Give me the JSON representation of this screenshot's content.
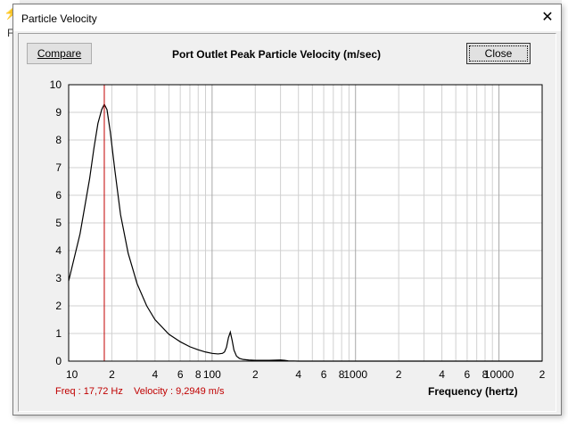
{
  "background": {
    "menu_fragment": "Fil"
  },
  "window": {
    "title": "Particle Velocity",
    "close_glyph": "✕"
  },
  "toolbar": {
    "compare_label": "Compare",
    "close_label": "Close"
  },
  "chart_title": "Port Outlet Peak Particle Velocity (m/sec)",
  "readout": {
    "freq": "Freq : 17,72 Hz",
    "velocity": "Velocity : 9,2949 m/s"
  },
  "colors": {
    "curve": "#000000",
    "cursor": "#c00000",
    "grid": "#d0d0d0"
  },
  "chart_data": {
    "type": "line",
    "title": "Port Outlet Peak Particle Velocity (m/sec)",
    "xlabel": "Frequency (hertz)",
    "ylabel": "",
    "x_scale": "log",
    "xlim": [
      10,
      20000
    ],
    "ylim": [
      0,
      10
    ],
    "y_ticks": [
      "0",
      "1",
      "2",
      "3",
      "4",
      "5",
      "6",
      "7",
      "8",
      "9",
      "10"
    ],
    "x_ticks": [
      {
        "value": 10,
        "label": "10"
      },
      {
        "value": 20,
        "label": "2"
      },
      {
        "value": 40,
        "label": "4"
      },
      {
        "value": 60,
        "label": "6"
      },
      {
        "value": 80,
        "label": "8"
      },
      {
        "value": 100,
        "label": "100"
      },
      {
        "value": 200,
        "label": "2"
      },
      {
        "value": 400,
        "label": "4"
      },
      {
        "value": 600,
        "label": "6"
      },
      {
        "value": 800,
        "label": "8"
      },
      {
        "value": 1000,
        "label": "1000"
      },
      {
        "value": 2000,
        "label": "2"
      },
      {
        "value": 4000,
        "label": "4"
      },
      {
        "value": 6000,
        "label": "6"
      },
      {
        "value": 8000,
        "label": "8"
      },
      {
        "value": 10000,
        "label": "10000"
      },
      {
        "value": 20000,
        "label": "2"
      }
    ],
    "grid": true,
    "cursor_x": 17.72,
    "series": [
      {
        "x": [
          10,
          12,
          14,
          15,
          16,
          17,
          17.72,
          18.5,
          19.5,
          21,
          23,
          26,
          30,
          35,
          40,
          50,
          60,
          70,
          80,
          90,
          100,
          110,
          118,
          122,
          126,
          130,
          134,
          138,
          142,
          148,
          155,
          165,
          180,
          200,
          250,
          300,
          320,
          340,
          400,
          600,
          1000,
          2000,
          20000
        ],
        "y": [
          2.9,
          4.6,
          6.6,
          7.7,
          8.6,
          9.1,
          9.29,
          9.1,
          8.3,
          6.9,
          5.3,
          3.9,
          2.8,
          2.0,
          1.5,
          0.97,
          0.7,
          0.52,
          0.41,
          0.33,
          0.28,
          0.26,
          0.28,
          0.33,
          0.5,
          0.85,
          1.05,
          0.75,
          0.4,
          0.18,
          0.1,
          0.06,
          0.04,
          0.03,
          0.03,
          0.04,
          0.03,
          0.01,
          0.0,
          0.0,
          0.0,
          0.0,
          0.0
        ]
      }
    ]
  }
}
